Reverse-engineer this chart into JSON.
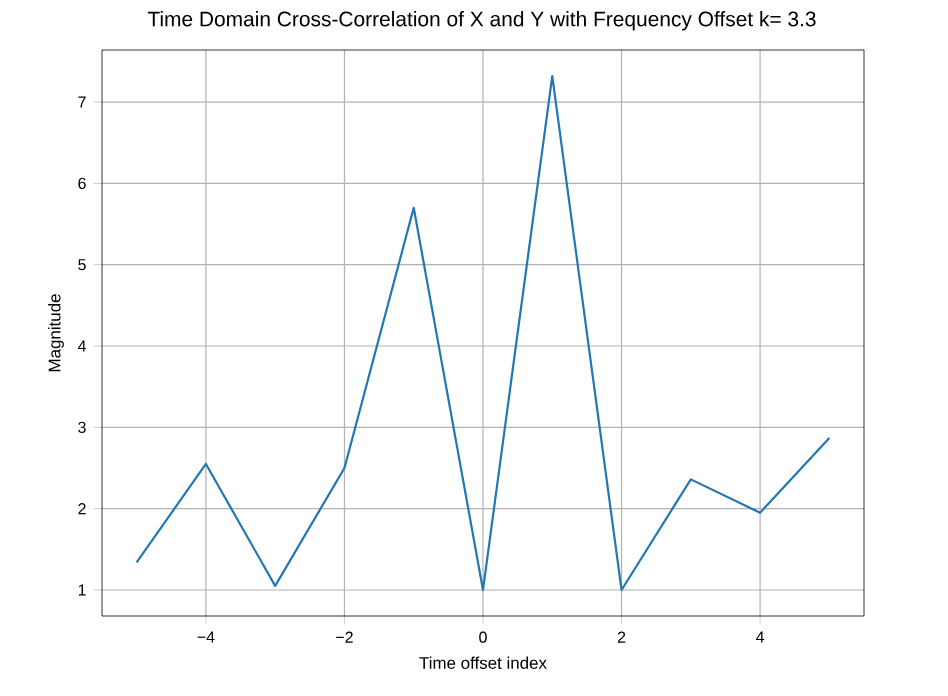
{
  "chart_data": {
    "type": "line",
    "title": "Time Domain Cross-Correlation of X and Y with Frequency Offset k= 3.3",
    "xlabel": "Time offset index",
    "ylabel": "Magnitude",
    "x": [
      -5,
      -4,
      -3,
      -2,
      -1,
      0,
      1,
      2,
      3,
      4,
      5
    ],
    "series": [
      {
        "color": "#1f77b4",
        "values": [
          1.34,
          2.55,
          1.05,
          2.5,
          5.7,
          1.0,
          7.32,
          1.0,
          2.36,
          1.95,
          2.87
        ]
      }
    ],
    "xlim": [
      -5.5,
      5.5
    ],
    "ylim": [
      0.68,
      7.64
    ],
    "xticks": [
      {
        "value": -4,
        "label": "−4"
      },
      {
        "value": -2,
        "label": "−2"
      },
      0,
      2,
      4
    ],
    "yticks": [
      1,
      2,
      3,
      4,
      5,
      6,
      7
    ],
    "grid": true,
    "marker": "none",
    "line_style": "solid"
  }
}
